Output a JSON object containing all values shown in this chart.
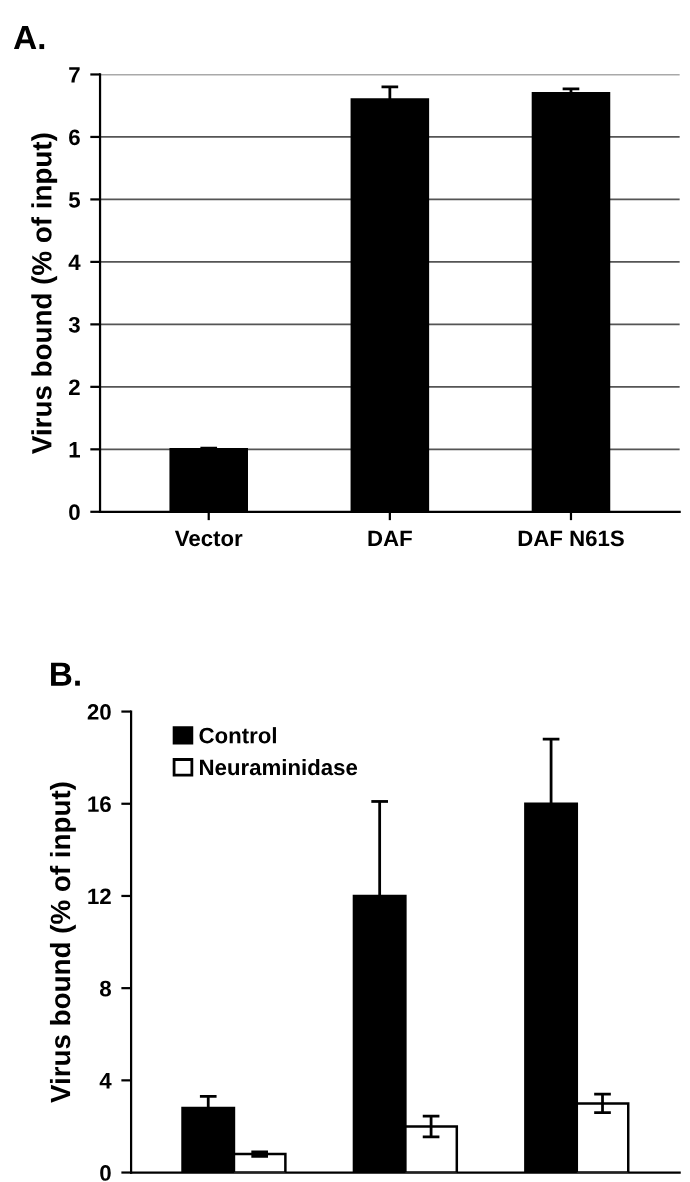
{
  "chart_data": [
    {
      "type": "bar",
      "title": "A.",
      "ylabel": "Virus bound (% of input)",
      "categories": [
        "Vector",
        "DAF",
        "DAF N61S"
      ],
      "series": [
        {
          "color": "#000000",
          "values": [
            1.0,
            6.6,
            6.7
          ],
          "errors": [
            0.02,
            0.2,
            0.07
          ]
        }
      ],
      "ylim": [
        0,
        7
      ],
      "yticks": [
        0,
        1,
        2,
        3,
        4,
        5,
        6,
        7
      ],
      "grid": "y"
    },
    {
      "type": "bar",
      "title": "B.",
      "ylabel": "Virus bound (% of input)",
      "categories": [
        null,
        null,
        null
      ],
      "series": [
        {
          "name": "Control",
          "color": "#000000",
          "values": [
            2.8,
            12,
            16
          ],
          "errors": [
            0.5,
            4.1,
            2.8
          ]
        },
        {
          "name": "Neuraminidase",
          "color": "#ffffff",
          "values": [
            0.8,
            2.0,
            3.0
          ],
          "errors": [
            0.1,
            0.45,
            0.4
          ]
        }
      ],
      "ylim": [
        0,
        20
      ],
      "yticks": [
        0,
        4,
        8,
        12,
        16,
        20
      ],
      "legend": "top left",
      "tick_labels": "y"
    }
  ]
}
